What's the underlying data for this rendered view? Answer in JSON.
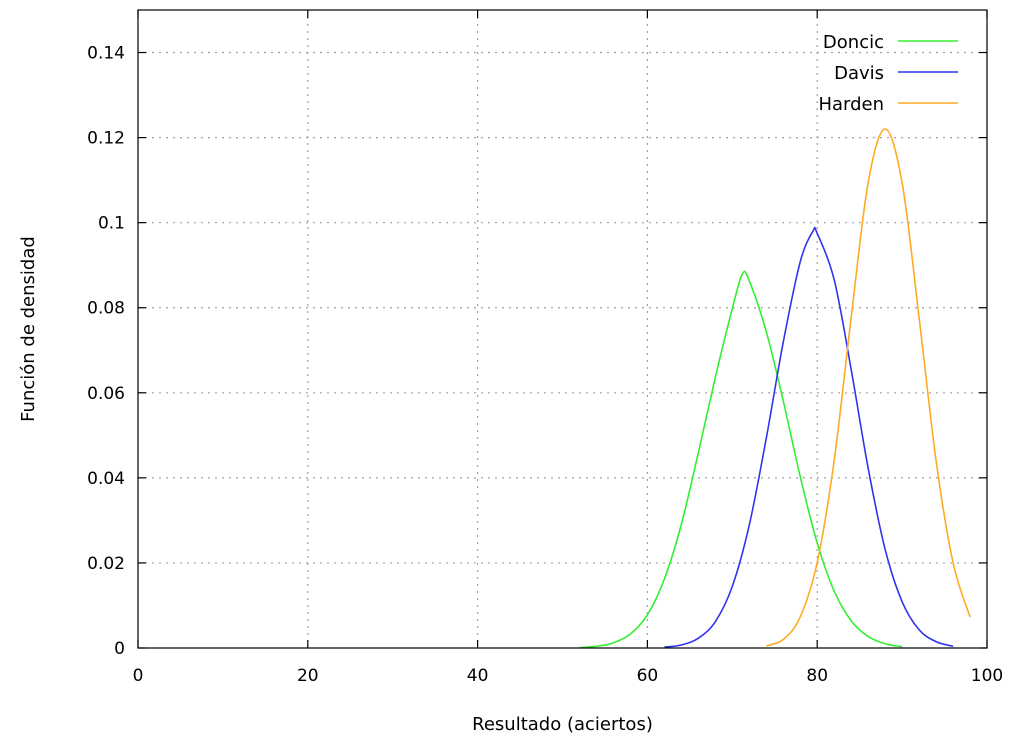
{
  "chart_data": {
    "type": "line",
    "title": "",
    "xlabel": "Resultado (aciertos)",
    "ylabel": "Función de densidad",
    "xlim": [
      0,
      100
    ],
    "ylim": [
      0,
      0.15
    ],
    "x_ticks": [
      0,
      20,
      40,
      60,
      80,
      100
    ],
    "x_tick_labels": [
      "0",
      "20",
      "40",
      "60",
      "80",
      "100"
    ],
    "y_ticks": [
      0,
      0.02,
      0.04,
      0.06,
      0.08,
      0.1,
      0.12,
      0.14
    ],
    "y_tick_labels": [
      "0",
      "0.02",
      "0.04",
      "0.06",
      "0.08",
      "0.1",
      "0.12",
      "0.14"
    ],
    "grid": true,
    "legend_position": "top-right",
    "series": [
      {
        "name": "Doncic",
        "color": "#33ee33",
        "x": [
          52,
          54,
          56,
          58,
          60,
          62,
          64,
          66,
          68,
          70,
          71.2,
          72,
          74,
          76,
          78,
          80,
          82,
          84,
          86,
          88,
          90
        ],
        "y": [
          0.0001,
          0.0004,
          0.0012,
          0.0033,
          0.0078,
          0.0162,
          0.0291,
          0.0459,
          0.0636,
          0.0798,
          0.088,
          0.0863,
          0.0744,
          0.0581,
          0.0403,
          0.0247,
          0.0134,
          0.0064,
          0.0027,
          0.001,
          0.0003
        ]
      },
      {
        "name": "Davis",
        "color": "#3333ee",
        "x": [
          62,
          64,
          66,
          68,
          70,
          72,
          74,
          76,
          78,
          79.5,
          80,
          82,
          84,
          86,
          88,
          90,
          92,
          94,
          96
        ],
        "y": [
          0.0002,
          0.0007,
          0.0023,
          0.0062,
          0.0145,
          0.0289,
          0.0493,
          0.0719,
          0.0908,
          0.098,
          0.0975,
          0.0866,
          0.0655,
          0.0423,
          0.0232,
          0.0109,
          0.0043,
          0.0015,
          0.0004
        ]
      },
      {
        "name": "Harden",
        "color": "#ffaa22",
        "x": [
          74,
          76,
          78,
          80,
          82,
          84,
          86,
          88,
          90,
          92,
          94,
          96,
          98
        ],
        "y": [
          0.0005,
          0.002,
          0.0073,
          0.0201,
          0.0441,
          0.0777,
          0.1094,
          0.122,
          0.1094,
          0.0777,
          0.0441,
          0.0201,
          0.0073
        ]
      }
    ]
  }
}
